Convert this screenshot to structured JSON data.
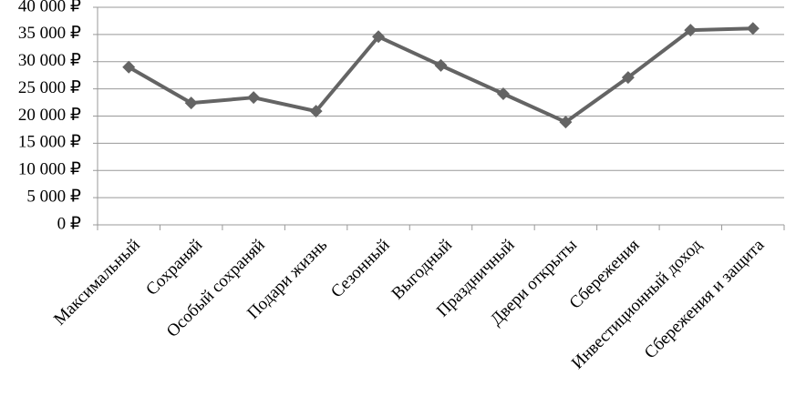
{
  "chart_data": {
    "type": "line",
    "categories": [
      "Максимальный",
      "Сохраняй",
      "Особый сохраняй",
      "Подари жизнь",
      "Сезонный",
      "Выгодный",
      "Праздничный",
      "Двери открыты",
      "Сбережения",
      "Инвестиционный доход",
      "Сбережения и защита"
    ],
    "series": [
      {
        "color": "#646464",
        "values": [
          29000,
          22400,
          23400,
          20900,
          34600,
          29300,
          24100,
          18900,
          27100,
          35800,
          36100
        ]
      }
    ],
    "ylim": [
      0,
      40000
    ],
    "yticks": [
      {
        "value": 0,
        "label": "0 ₽"
      },
      {
        "value": 5000,
        "label": "5 000 ₽"
      },
      {
        "value": 10000,
        "label": "10 000 ₽"
      },
      {
        "value": 15000,
        "label": "15 000 ₽"
      },
      {
        "value": 20000,
        "label": "20 000 ₽"
      },
      {
        "value": 25000,
        "label": "25 000 ₽"
      },
      {
        "value": 30000,
        "label": "30 000 ₽"
      },
      {
        "value": 35000,
        "label": "35 000 ₽"
      },
      {
        "value": 40000,
        "label": "40 000 ₽"
      }
    ],
    "grid": true
  }
}
